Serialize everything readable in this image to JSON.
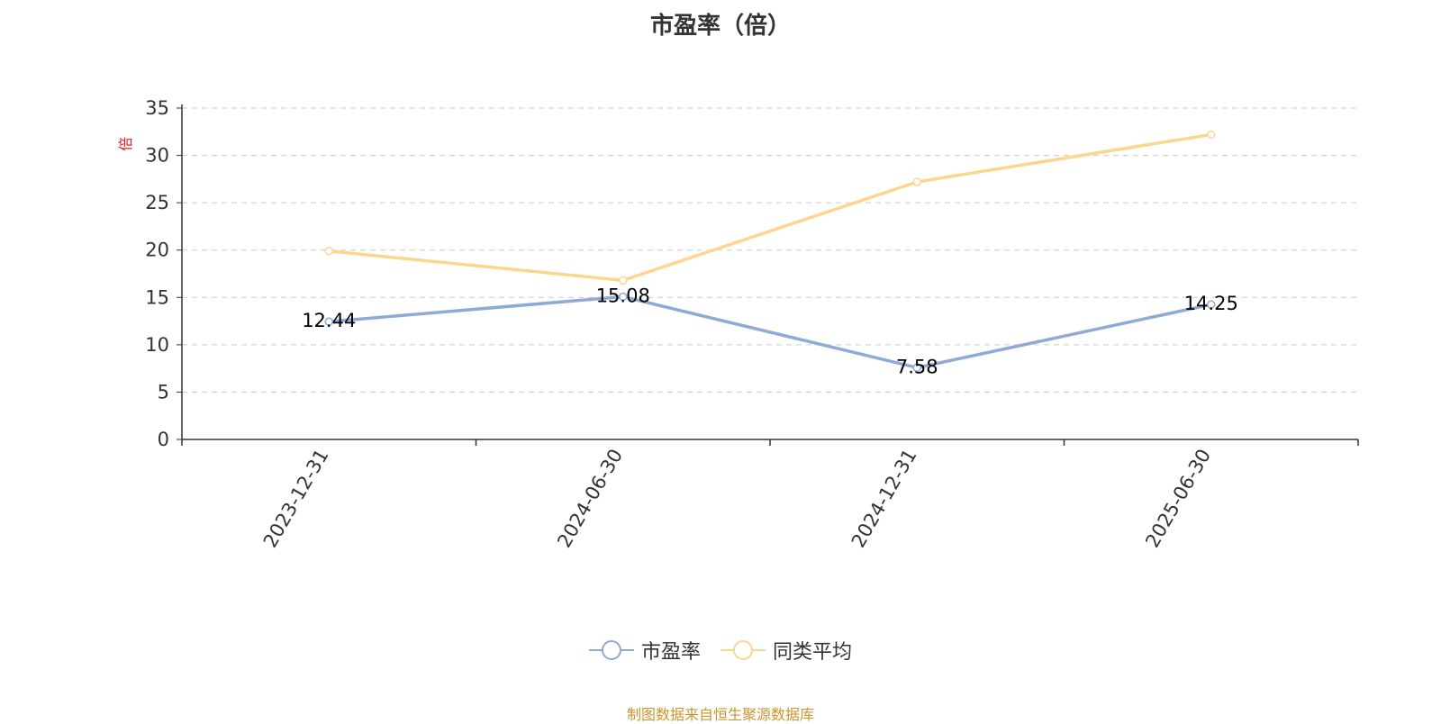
{
  "chart_data": {
    "type": "line",
    "title": "市盈率（倍）",
    "ylabel": "倍",
    "xlabel": "",
    "categories": [
      "2023-12-31",
      "2024-06-30",
      "2024-12-31",
      "2025-06-30"
    ],
    "ylim": [
      0,
      35
    ],
    "yticks": [
      0,
      5,
      10,
      15,
      20,
      25,
      30,
      35
    ],
    "grid": true,
    "legend_position": "bottom-center",
    "series": [
      {
        "name": "市盈率",
        "color": "#8eaad6",
        "values": [
          12.44,
          15.08,
          7.58,
          14.25
        ],
        "show_labels": true
      },
      {
        "name": "同类平均",
        "color": "#fcd58f",
        "values": [
          19.9,
          16.8,
          27.2,
          32.2
        ],
        "show_labels": false
      }
    ]
  },
  "legend": {
    "items": [
      "市盈率",
      "同类平均"
    ]
  },
  "footer": {
    "source": "制图数据来自恒生聚源数据库"
  }
}
